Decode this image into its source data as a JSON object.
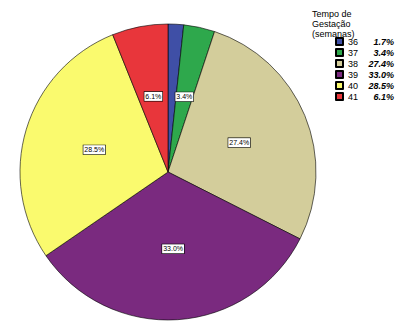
{
  "chart_data": {
    "type": "pie",
    "legend_title": "Tempo de Gestação (semanas)",
    "categories": [
      "36",
      "37",
      "38",
      "39",
      "40",
      "41"
    ],
    "values": [
      1.7,
      3.4,
      27.4,
      33.0,
      28.5,
      6.1
    ],
    "value_labels": [
      "1.7%",
      "3.4%",
      "27.4%",
      "33.0%",
      "28.5%",
      "6.1%"
    ],
    "colors": [
      "#3f4fa6",
      "#2ea84c",
      "#d3cd9b",
      "#7a2a7f",
      "#fafa6e",
      "#e8363b"
    ],
    "data_labels": true,
    "legend": "upper right"
  }
}
